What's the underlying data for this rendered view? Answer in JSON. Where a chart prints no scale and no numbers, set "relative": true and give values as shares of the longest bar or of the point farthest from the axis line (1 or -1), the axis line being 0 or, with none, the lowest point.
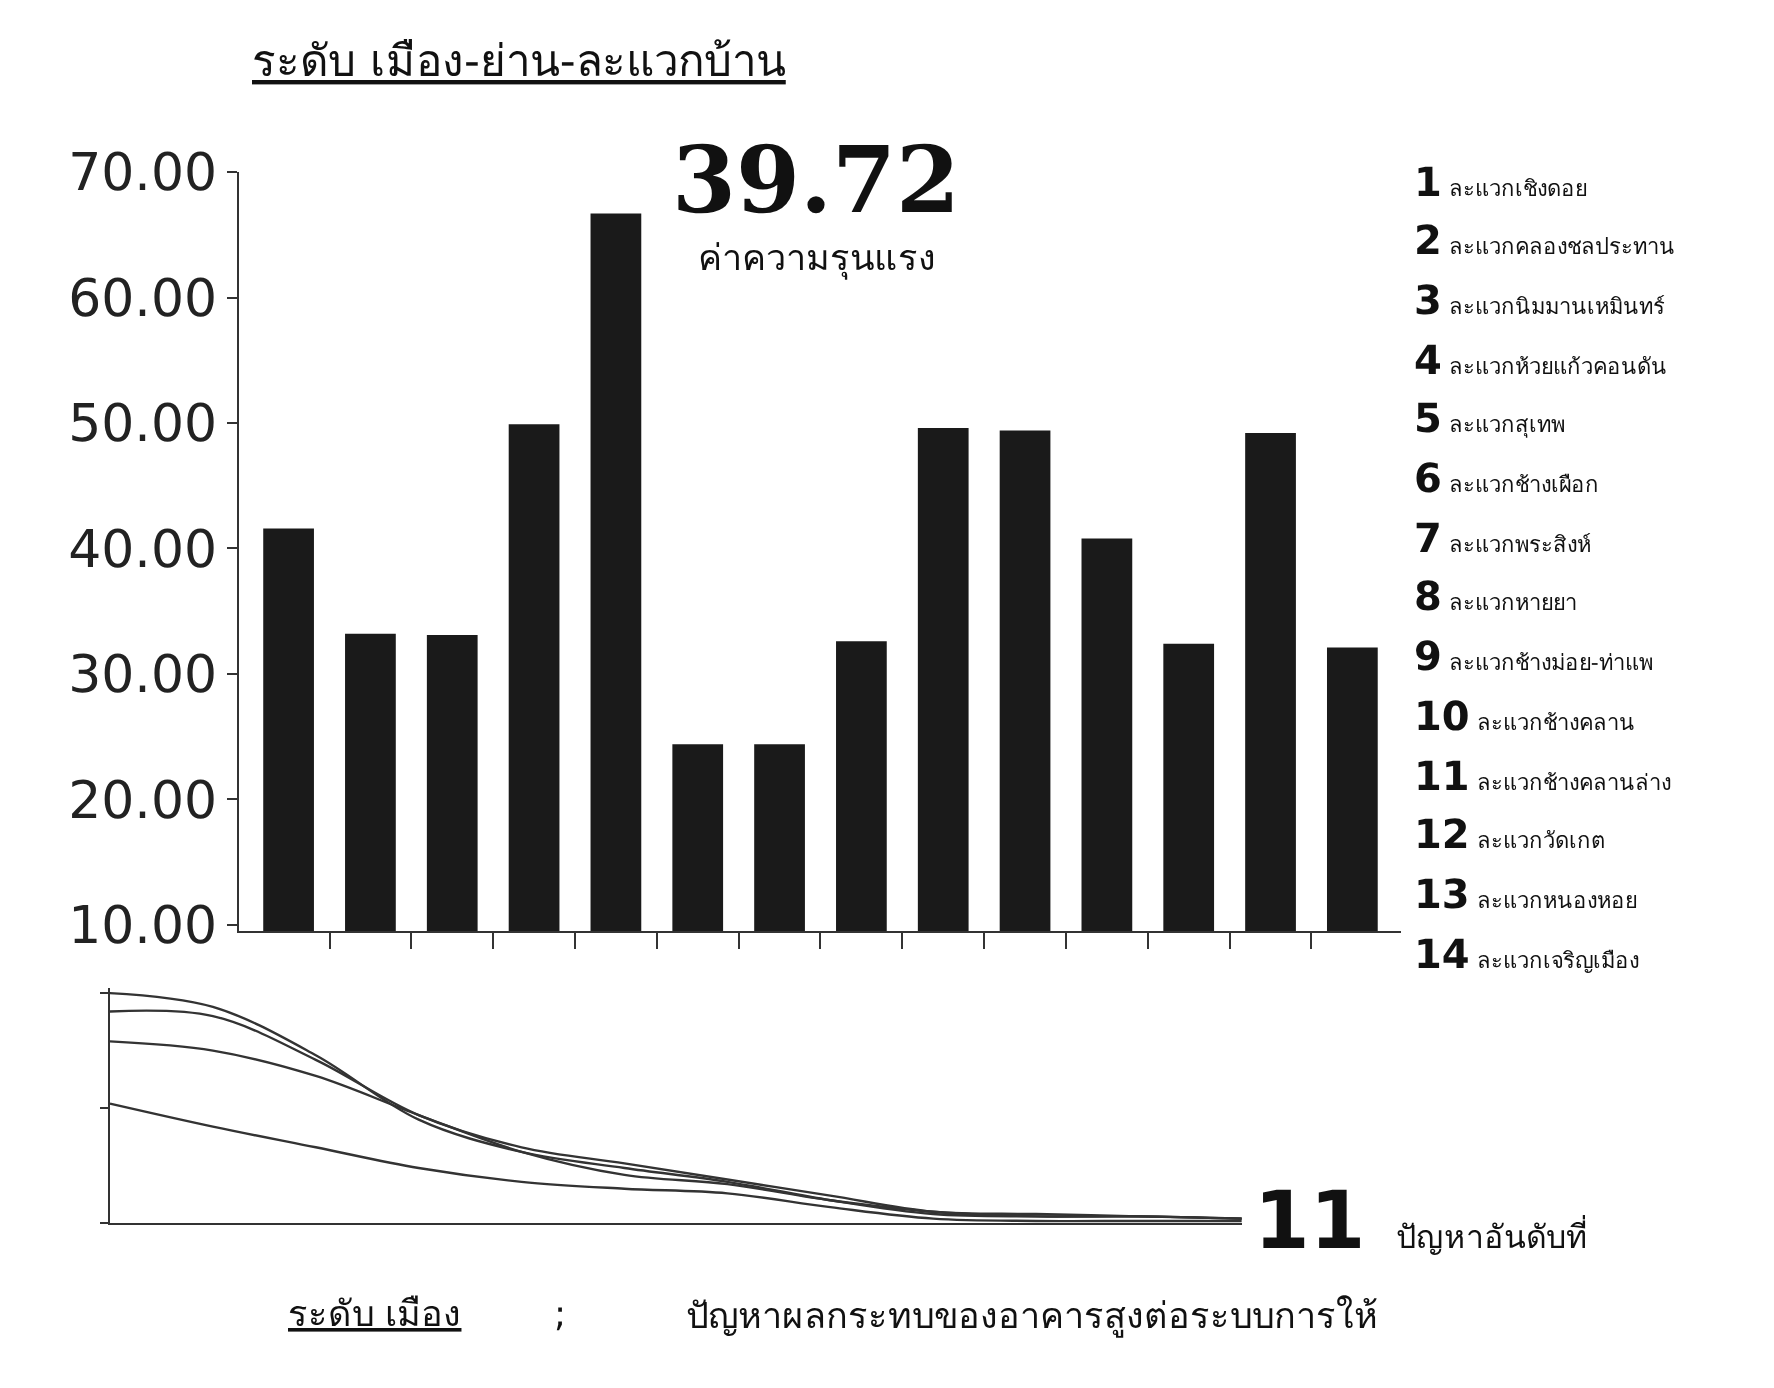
{
  "chart_data": [
    {
      "type": "bar",
      "title": "ระดับ เมือง-ย่าน-ละแวกบ้าน",
      "categories": [
        null,
        null,
        null,
        null,
        null,
        null,
        null,
        null,
        null,
        null,
        null,
        null,
        null,
        null
      ],
      "values": [
        41.6,
        33.2,
        33.1,
        49.9,
        66.7,
        24.4,
        24.4,
        32.6,
        49.6,
        49.4,
        40.8,
        32.4,
        49.2,
        32.1
      ],
      "color": "#1a1a1a",
      "ylim": [
        9.5,
        70
      ],
      "yticks": [
        {
          "value": 10,
          "label": "10.00"
        },
        {
          "value": 20,
          "label": "20.00"
        },
        {
          "value": 30,
          "label": "30.00"
        },
        {
          "value": 40,
          "label": "40.00"
        },
        {
          "value": 50,
          "label": "50.00"
        },
        {
          "value": 60,
          "label": "60.00"
        },
        {
          "value": 70,
          "label": "70.00"
        }
      ],
      "annotations": [
        "39.72",
        "ค่าความรุนแรง",
        "1 ละแวกเชิงดอย",
        "2 ละแวกคลองชลประทาน",
        "3 ละแวกนิมมานเหมินทร์",
        "4 ละแวกห้วยแก้วคอนดัน",
        "5 ละแวกสุเทพ",
        "6 ละแวกช้างเผือก",
        "7 ละแวกพระสิงห์",
        "8 ละแวกหายยา",
        "9 ละแวกช้างม่อย-ท่าแพ",
        "10 ละแวกช้างคลาน",
        "11 ละแวกช้างคลานล่าง",
        "12 ละแวกวัดเกต",
        "13 ละแวกหนองหอย",
        "14 ละแวกเจริญเมือง"
      ]
    },
    {
      "type": "line",
      "relative": true,
      "categories": [
        null,
        null,
        null,
        null,
        null,
        null,
        null,
        null,
        null,
        null,
        null,
        null
      ],
      "series": [
        {
          "color": "#333333",
          "values": [
            1.0,
            0.94,
            0.73,
            0.45,
            0.31,
            0.24,
            0.18,
            0.1,
            0.04,
            0.03,
            0.03,
            0.02
          ]
        },
        {
          "color": "#333333",
          "values": [
            0.92,
            0.9,
            0.71,
            0.47,
            0.33,
            0.26,
            0.19,
            0.12,
            0.05,
            0.04,
            0.03,
            0.02
          ]
        },
        {
          "color": "#333333",
          "values": [
            0.79,
            0.75,
            0.64,
            0.47,
            0.31,
            0.21,
            0.17,
            0.1,
            0.05,
            0.03,
            0.03,
            0.02
          ]
        },
        {
          "color": "#333333",
          "values": [
            0.52,
            0.42,
            0.33,
            0.24,
            0.18,
            0.15,
            0.13,
            0.07,
            0.02,
            0.01,
            0.01,
            0.01
          ]
        }
      ],
      "line_style": "solid",
      "marker": "none",
      "annotations": [
        "11 ปัญหาอันดับที่",
        "ระดับ เมือง",
        ";",
        "ปัญหาผลกระทบของอาคารสูงต่อระบบการให้"
      ]
    }
  ]
}
